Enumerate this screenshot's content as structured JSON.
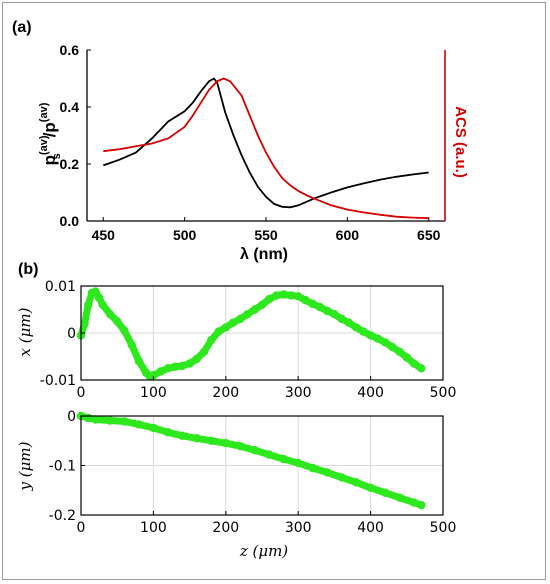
{
  "panels": {
    "a": "(a)",
    "b": "(b)"
  },
  "chart_data": [
    {
      "type": "line",
      "panel": "(a)",
      "xlabel": "λ (nm)",
      "ylabel_left": "ps(av)/p(av)",
      "ylabel_left_parts": {
        "base1": "p",
        "sub": "s",
        "sup1": "(av)",
        "slash": "/",
        "base2": "p",
        "sup2": "(av)"
      },
      "ylabel_right": "ACS (a.u.)",
      "xlim": [
        440,
        660
      ],
      "ylim": [
        0,
        0.6
      ],
      "xticks": [
        "450",
        "500",
        "550",
        "600",
        "650"
      ],
      "yticks": [
        "0.0",
        "0.2",
        "0.4",
        "0.6"
      ],
      "right_axis_color": "#d40000",
      "series": [
        {
          "color": "#000000",
          "axis": "left",
          "points": [
            [
              450,
              0.195
            ],
            [
              460,
              0.215
            ],
            [
              470,
              0.24
            ],
            [
              480,
              0.29
            ],
            [
              490,
              0.35
            ],
            [
              500,
              0.385
            ],
            [
              505,
              0.415
            ],
            [
              510,
              0.455
            ],
            [
              515,
              0.49
            ],
            [
              518,
              0.5
            ],
            [
              520,
              0.485
            ],
            [
              525,
              0.38
            ],
            [
              530,
              0.3
            ],
            [
              535,
              0.23
            ],
            [
              540,
              0.17
            ],
            [
              545,
              0.12
            ],
            [
              550,
              0.085
            ],
            [
              555,
              0.06
            ],
            [
              560,
              0.05
            ],
            [
              565,
              0.048
            ],
            [
              570,
              0.055
            ],
            [
              580,
              0.08
            ],
            [
              590,
              0.1
            ],
            [
              600,
              0.118
            ],
            [
              610,
              0.132
            ],
            [
              620,
              0.145
            ],
            [
              630,
              0.155
            ],
            [
              640,
              0.163
            ],
            [
              650,
              0.17
            ]
          ]
        },
        {
          "color": "#d40000",
          "axis": "right",
          "points": [
            [
              450,
              0.245
            ],
            [
              460,
              0.252
            ],
            [
              470,
              0.262
            ],
            [
              480,
              0.272
            ],
            [
              490,
              0.29
            ],
            [
              500,
              0.33
            ],
            [
              505,
              0.37
            ],
            [
              510,
              0.415
            ],
            [
              515,
              0.46
            ],
            [
              520,
              0.49
            ],
            [
              524,
              0.5
            ],
            [
              528,
              0.49
            ],
            [
              535,
              0.44
            ],
            [
              540,
              0.37
            ],
            [
              545,
              0.3
            ],
            [
              550,
              0.24
            ],
            [
              555,
              0.19
            ],
            [
              560,
              0.15
            ],
            [
              565,
              0.125
            ],
            [
              570,
              0.105
            ],
            [
              575,
              0.09
            ],
            [
              580,
              0.078
            ],
            [
              590,
              0.055
            ],
            [
              600,
              0.04
            ],
            [
              610,
              0.03
            ],
            [
              620,
              0.022
            ],
            [
              630,
              0.015
            ],
            [
              640,
              0.012
            ],
            [
              650,
              0.01
            ]
          ]
        }
      ]
    },
    {
      "type": "scatter",
      "panel": "(b) top",
      "ylabel": "x (μm)",
      "xlim": [
        0,
        500
      ],
      "ylim": [
        -0.01,
        0.01
      ],
      "xticks": [
        "0",
        "100",
        "200",
        "300",
        "400",
        "500"
      ],
      "yticks": [
        "0.01",
        "0",
        "-0.01"
      ],
      "grid": true,
      "marker_color": "#2ee81e",
      "points": [
        [
          0,
          -0.0005
        ],
        [
          5,
          0.002
        ],
        [
          10,
          0.006
        ],
        [
          15,
          0.0085
        ],
        [
          20,
          0.0088
        ],
        [
          25,
          0.0075
        ],
        [
          30,
          0.006
        ],
        [
          40,
          0.004
        ],
        [
          50,
          0.0025
        ],
        [
          60,
          0.0005
        ],
        [
          70,
          -0.0025
        ],
        [
          80,
          -0.006
        ],
        [
          90,
          -0.0085
        ],
        [
          95,
          -0.0092
        ],
        [
          100,
          -0.009
        ],
        [
          110,
          -0.0082
        ],
        [
          120,
          -0.0075
        ],
        [
          130,
          -0.0072
        ],
        [
          140,
          -0.007
        ],
        [
          150,
          -0.0065
        ],
        [
          160,
          -0.0055
        ],
        [
          170,
          -0.004
        ],
        [
          180,
          -0.0015
        ],
        [
          190,
          0.0003
        ],
        [
          200,
          0.0012
        ],
        [
          210,
          0.0022
        ],
        [
          220,
          0.003
        ],
        [
          230,
          0.004
        ],
        [
          240,
          0.005
        ],
        [
          250,
          0.006
        ],
        [
          260,
          0.0072
        ],
        [
          270,
          0.008
        ],
        [
          280,
          0.0082
        ],
        [
          290,
          0.008
        ],
        [
          300,
          0.0078
        ],
        [
          310,
          0.007
        ],
        [
          320,
          0.0062
        ],
        [
          330,
          0.0055
        ],
        [
          340,
          0.0047
        ],
        [
          350,
          0.004
        ],
        [
          360,
          0.003
        ],
        [
          370,
          0.0022
        ],
        [
          380,
          0.0012
        ],
        [
          390,
          0.0003
        ],
        [
          400,
          -0.0005
        ],
        [
          410,
          -0.0012
        ],
        [
          420,
          -0.002
        ],
        [
          430,
          -0.003
        ],
        [
          440,
          -0.004
        ],
        [
          450,
          -0.0052
        ],
        [
          460,
          -0.0065
        ],
        [
          470,
          -0.0075
        ]
      ]
    },
    {
      "type": "scatter",
      "panel": "(b) bottom",
      "xlabel": "z (μm)",
      "ylabel": "y (μm)",
      "xlim": [
        0,
        500
      ],
      "ylim": [
        -0.2,
        0
      ],
      "xticks": [
        "0",
        "100",
        "200",
        "300",
        "400",
        "500"
      ],
      "yticks": [
        "0",
        "-0.1",
        "-0.2"
      ],
      "grid": true,
      "marker_color": "#2ee81e",
      "points": [
        [
          0,
          0
        ],
        [
          10,
          -0.004
        ],
        [
          20,
          -0.007
        ],
        [
          40,
          -0.009
        ],
        [
          60,
          -0.011
        ],
        [
          80,
          -0.017
        ],
        [
          100,
          -0.024
        ],
        [
          120,
          -0.033
        ],
        [
          140,
          -0.04
        ],
        [
          160,
          -0.045
        ],
        [
          180,
          -0.05
        ],
        [
          200,
          -0.055
        ],
        [
          220,
          -0.061
        ],
        [
          240,
          -0.069
        ],
        [
          260,
          -0.078
        ],
        [
          280,
          -0.087
        ],
        [
          300,
          -0.095
        ],
        [
          320,
          -0.105
        ],
        [
          340,
          -0.114
        ],
        [
          360,
          -0.124
        ],
        [
          380,
          -0.134
        ],
        [
          400,
          -0.145
        ],
        [
          420,
          -0.155
        ],
        [
          440,
          -0.165
        ],
        [
          460,
          -0.175
        ],
        [
          470,
          -0.18
        ]
      ]
    }
  ]
}
